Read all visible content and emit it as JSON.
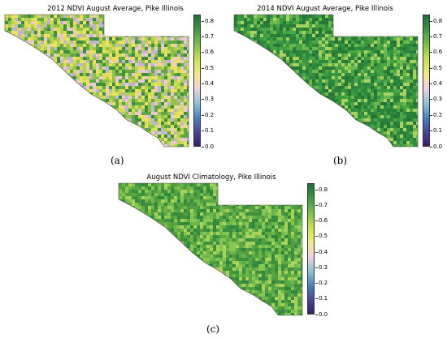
{
  "colormap": {
    "stops": [
      "#3b1b6b",
      "#46489b",
      "#4a86c0",
      "#93c6d8",
      "#f4d0dc",
      "#f0ea80",
      "#c8e04d",
      "#7bc248",
      "#3c9a43",
      "#1d6f36"
    ]
  },
  "land_colors": {
    "a": [
      "#eddf62",
      "#d4dd56",
      "#b4d24e",
      "#8fc14b",
      "#5fa745",
      "#3c8f3f",
      "#e8c9cf",
      "#bfb7c9"
    ],
    "b": [
      "#2e8a3e",
      "#2a7f39",
      "#3a983f",
      "#4aa547",
      "#257536",
      "#6cb84b",
      "#a7d25f"
    ],
    "c": [
      "#5ca845",
      "#4f9f42",
      "#6cb64a",
      "#3f913f",
      "#86c652",
      "#a8d25a",
      "#2f8a3d"
    ]
  },
  "panels": [
    {
      "id": "a",
      "title": "2012 NDVI August Average, Pike Illinois",
      "label": "(a)",
      "colorbar_ticks": [
        "0.8",
        "0.7",
        "0.6",
        "0.5",
        "0.4",
        "0.3",
        "0.2",
        "0.1",
        "0.0"
      ]
    },
    {
      "id": "b",
      "title": "2014 NDVI August Average, Pike Illinois",
      "label": "(b)",
      "colorbar_ticks": [
        "0.8",
        "0.7",
        "0.6",
        "0.5",
        "0.4",
        "0.3",
        "0.2",
        "0.1",
        "0.0"
      ]
    },
    {
      "id": "c",
      "title": "August NDVI Climatology, Pike Illinois",
      "label": "(c)",
      "colorbar_ticks": [
        "0.8",
        "0.7",
        "0.6",
        "0.5",
        "0.4",
        "0.3",
        "0.2",
        "0.1",
        "0.0"
      ]
    }
  ]
}
